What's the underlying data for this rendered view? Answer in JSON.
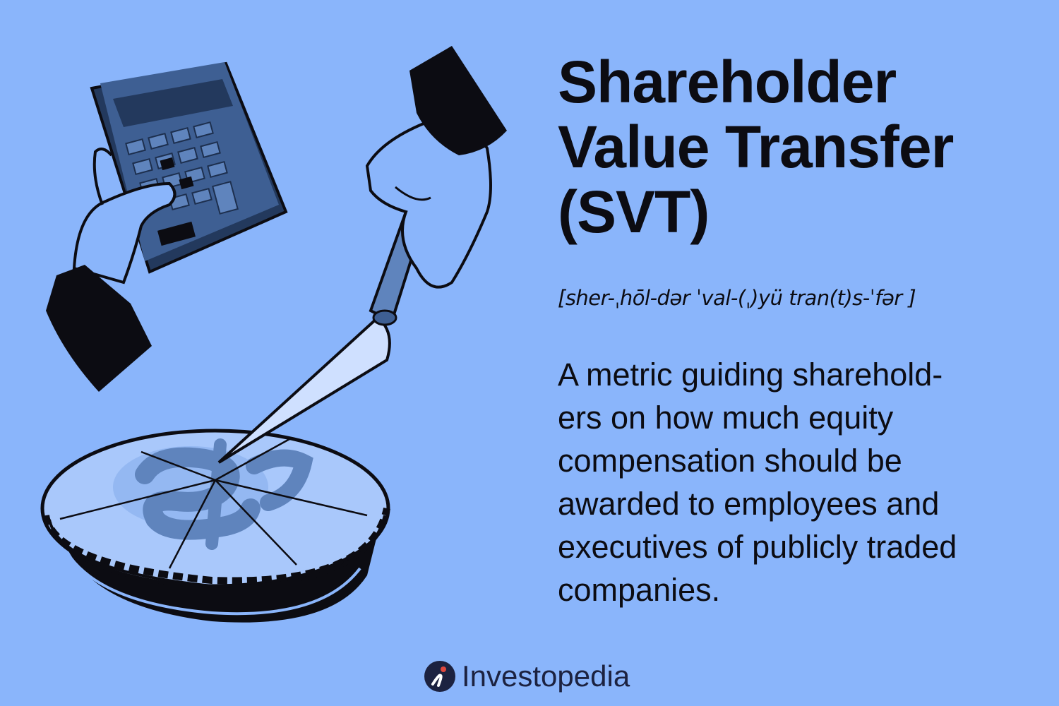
{
  "title_lines": [
    "Shareholder",
    "Value Transfer",
    "(SVT)"
  ],
  "pronunciation": "[sher-ˌhōl-dər ˈval-(ˌ)yü tran(t)s-ˈfər ]",
  "definition_lines": [
    "A metric guiding sharehold-",
    "ers on how much equity",
    "compensation should be",
    "awarded to employees and",
    "executives of publicly traded",
    "companies."
  ],
  "brand": {
    "name": "Investopedia",
    "icon": "investopedia-logo-icon"
  },
  "illustration": {
    "icons": [
      "calculator-icon",
      "cake-server-icon",
      "pie-icon",
      "dollar-sign-icon",
      "hand-icon"
    ],
    "colors": {
      "background": "#8ab5fb",
      "ink": "#0c0c12",
      "calculator": "#3e5f93",
      "calculator_dark": "#23395d",
      "pie_fill": "#a9c8fb",
      "server_blade": "#cfe0ff",
      "dollar": "#5f84bd"
    }
  }
}
